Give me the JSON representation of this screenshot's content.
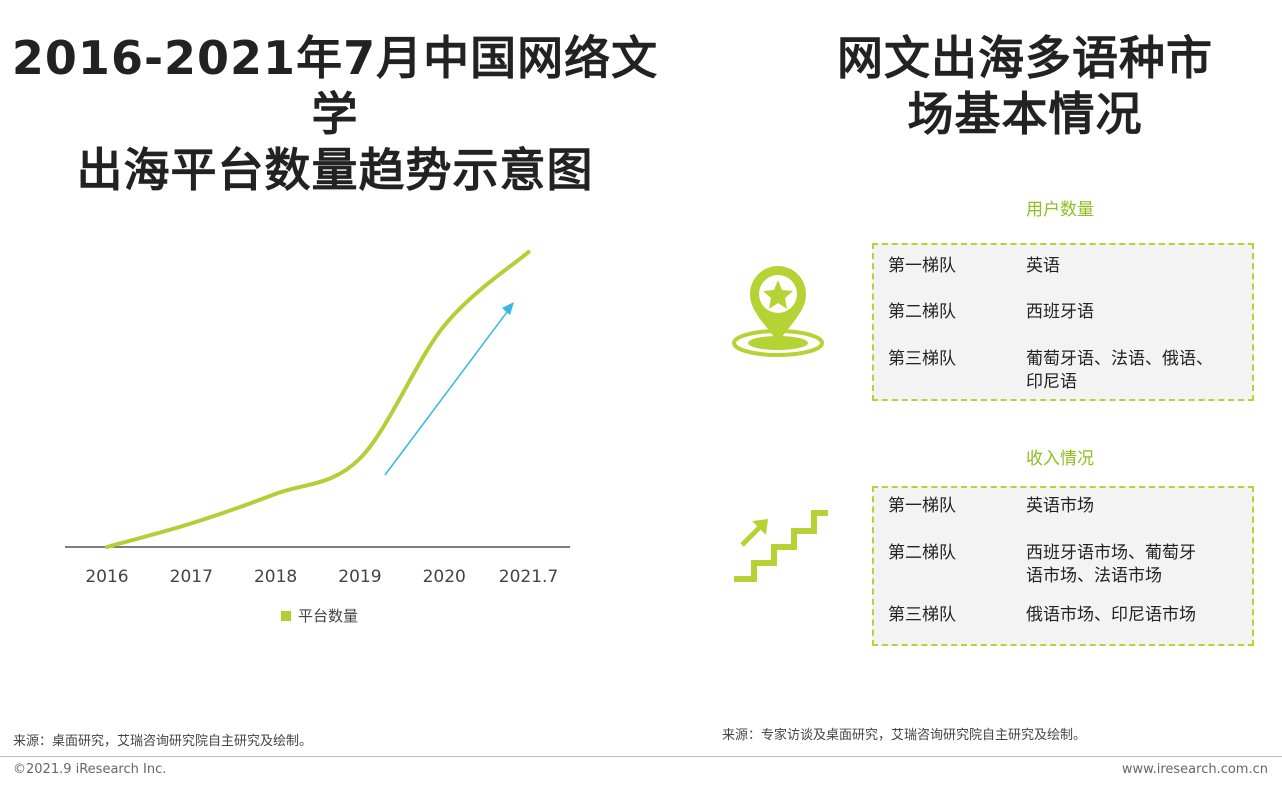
{
  "left_title_line1": "2016-2021年7月中国网络文学",
  "left_title_line2": "出海平台数量趋势示意图",
  "right_title_line1": "网文出海多语种市",
  "right_title_line2": "场基本情况",
  "colors": {
    "accent_green": "#b5d334",
    "label_green": "#8fbe1e",
    "line": "#b3cf36",
    "arrow": "#35b7e0",
    "box_bg": "#f3f3f3"
  },
  "chart_data": {
    "type": "line",
    "categories": [
      "2016",
      "2017",
      "2018",
      "2019",
      "2020",
      "2021.7"
    ],
    "series": [
      {
        "name": "平台数量",
        "values": [
          0,
          8,
          18,
          30,
          75,
          100
        ]
      }
    ],
    "trend_arrow": "upward",
    "legend_position": "bottom",
    "grid": false,
    "y_axis_shown": false,
    "ylim": [
      0,
      100
    ]
  },
  "user_count": {
    "label": "用户数量",
    "rows": [
      {
        "tier": "第一梯队",
        "value_line1": "英语",
        "value_line2": ""
      },
      {
        "tier": "第二梯队",
        "value_line1": "西班牙语",
        "value_line2": ""
      },
      {
        "tier": "第三梯队",
        "value_line1": "葡萄牙语、法语、俄语、",
        "value_line2": "印尼语"
      }
    ]
  },
  "revenue": {
    "label": "收入情况",
    "rows": [
      {
        "tier": "第一梯队",
        "value_line1": "英语市场",
        "value_line2": ""
      },
      {
        "tier": "第二梯队",
        "value_line1": "西班牙语市场、葡萄牙",
        "value_line2": "语市场、法语市场"
      },
      {
        "tier": "第三梯队",
        "value_line1": "俄语市场、印尼语市场",
        "value_line2": ""
      }
    ]
  },
  "icons": {
    "user_count": "location-pin-star-icon",
    "revenue": "stairs-up-arrow-icon"
  },
  "source_left": "来源：桌面研究，艾瑞咨询研究院自主研究及绘制。",
  "source_right": "来源：专家访谈及桌面研究，艾瑞咨询研究院自主研究及绘制。",
  "copyright": "©2021.9 iResearch Inc.",
  "website": "www.iresearch.com.cn"
}
